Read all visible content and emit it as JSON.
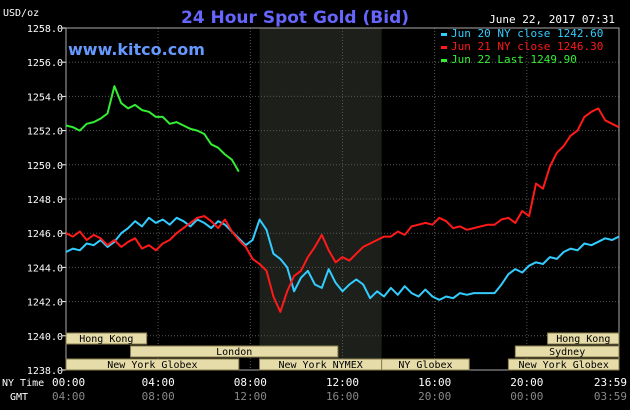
{
  "chart_data": {
    "type": "line",
    "title": "24 Hour Spot Gold (Bid)",
    "timestamp": "June 22, 2017 07:31",
    "watermark": "www.kitco.com",
    "y_unit_label": "USD/oz",
    "ylim": [
      1238.0,
      1258.0
    ],
    "y_ticks": [
      "1258.0",
      "1256.0",
      "1254.0",
      "1252.0",
      "1250.0",
      "1248.0",
      "1246.0",
      "1244.0",
      "1242.0",
      "1240.0",
      "1238.0"
    ],
    "x_row_label_ny": "NY Time",
    "x_row_label_gmt": "GMT",
    "x_ticks_ny": [
      "00:00",
      "04:00",
      "08:00",
      "12:00",
      "16:00",
      "20:00",
      "23:59"
    ],
    "x_ticks_gmt": [
      "04:00",
      "08:00",
      "12:00",
      "16:00",
      "20:00",
      "00:00",
      "03:59"
    ],
    "xlim_hours": [
      0,
      24
    ],
    "grid": true,
    "legend_position": "top-right",
    "colors": {
      "cyan": "#33ccff",
      "red": "#ff1a1a",
      "green": "#33ee33",
      "grid": "#555555",
      "title": "#6666ff",
      "text": "#ffffff",
      "tick_text": "#cccccc",
      "shade": "#1c1f1a",
      "session_bg": "#e6dcaa"
    },
    "shaded_region_hours": [
      8.4,
      13.7
    ],
    "series": [
      {
        "name": "Jun 20 NY close 1242.60",
        "color": "#33ccff",
        "x": [
          0,
          0.3,
          0.6,
          0.9,
          1.2,
          1.5,
          1.8,
          2.1,
          2.4,
          2.7,
          3.0,
          3.3,
          3.6,
          3.9,
          4.2,
          4.5,
          4.8,
          5.1,
          5.4,
          5.7,
          6.0,
          6.3,
          6.6,
          6.9,
          7.2,
          7.5,
          7.8,
          8.1,
          8.4,
          8.7,
          9.0,
          9.3,
          9.6,
          9.9,
          10.2,
          10.5,
          10.8,
          11.1,
          11.4,
          11.7,
          12.0,
          12.3,
          12.6,
          12.9,
          13.2,
          13.5,
          13.8,
          14.1,
          14.4,
          14.7,
          15.0,
          15.3,
          15.6,
          15.9,
          16.2,
          16.5,
          16.8,
          17.1,
          17.4,
          17.7,
          18.0,
          18.3,
          18.6,
          18.9,
          19.2,
          19.5,
          19.8,
          20.1,
          20.4,
          20.7,
          21.0,
          21.3,
          21.6,
          21.9,
          22.2,
          22.5,
          22.8,
          23.1,
          23.4,
          23.7,
          23.99
        ],
        "y": [
          1244.9,
          1245.1,
          1245.0,
          1245.4,
          1245.3,
          1245.6,
          1245.2,
          1245.5,
          1246.0,
          1246.3,
          1246.7,
          1246.4,
          1246.9,
          1246.6,
          1246.8,
          1246.5,
          1246.9,
          1246.7,
          1246.4,
          1246.8,
          1246.6,
          1246.3,
          1246.7,
          1246.5,
          1246.1,
          1245.7,
          1245.3,
          1245.6,
          1246.8,
          1246.2,
          1244.8,
          1244.5,
          1244.0,
          1242.6,
          1243.4,
          1243.8,
          1243.0,
          1242.8,
          1243.9,
          1243.1,
          1242.6,
          1243.0,
          1243.3,
          1243.0,
          1242.2,
          1242.6,
          1242.3,
          1242.8,
          1242.4,
          1242.9,
          1242.5,
          1242.3,
          1242.7,
          1242.3,
          1242.1,
          1242.3,
          1242.2,
          1242.5,
          1242.4,
          1242.5,
          1242.5,
          1242.5,
          1242.5,
          1243.0,
          1243.6,
          1243.9,
          1243.7,
          1244.1,
          1244.3,
          1244.2,
          1244.6,
          1244.5,
          1244.9,
          1245.1,
          1245.0,
          1245.4,
          1245.3,
          1245.5,
          1245.7,
          1245.6,
          1245.8
        ]
      },
      {
        "name": "Jun 21 NY close 1246.30",
        "color": "#ff1a1a",
        "x": [
          0,
          0.3,
          0.6,
          0.9,
          1.2,
          1.5,
          1.8,
          2.1,
          2.4,
          2.7,
          3.0,
          3.3,
          3.6,
          3.9,
          4.2,
          4.5,
          4.8,
          5.1,
          5.4,
          5.7,
          6.0,
          6.3,
          6.6,
          6.9,
          7.2,
          7.5,
          7.8,
          8.1,
          8.4,
          8.7,
          9.0,
          9.3,
          9.6,
          9.9,
          10.2,
          10.5,
          10.8,
          11.1,
          11.4,
          11.7,
          12.0,
          12.3,
          12.6,
          12.9,
          13.2,
          13.5,
          13.8,
          14.1,
          14.4,
          14.7,
          15.0,
          15.3,
          15.6,
          15.9,
          16.2,
          16.5,
          16.8,
          17.1,
          17.4,
          17.7,
          18.0,
          18.3,
          18.6,
          18.9,
          19.2,
          19.5,
          19.8,
          20.1,
          20.4,
          20.7,
          21.0,
          21.3,
          21.6,
          21.9,
          22.2,
          22.5,
          22.8,
          23.1,
          23.4,
          23.7,
          23.99
        ],
        "y": [
          1246.0,
          1245.8,
          1246.1,
          1245.6,
          1245.9,
          1245.7,
          1245.3,
          1245.6,
          1245.2,
          1245.5,
          1245.7,
          1245.1,
          1245.3,
          1245.0,
          1245.4,
          1245.6,
          1246.0,
          1246.3,
          1246.6,
          1246.9,
          1247.0,
          1246.7,
          1246.3,
          1246.8,
          1246.1,
          1245.6,
          1245.2,
          1244.5,
          1244.2,
          1243.8,
          1242.3,
          1241.4,
          1242.6,
          1243.5,
          1243.8,
          1244.6,
          1245.2,
          1245.9,
          1245.0,
          1244.3,
          1244.6,
          1244.4,
          1244.8,
          1245.2,
          1245.4,
          1245.6,
          1245.8,
          1245.8,
          1246.1,
          1245.9,
          1246.4,
          1246.5,
          1246.6,
          1246.5,
          1246.9,
          1246.7,
          1246.3,
          1246.4,
          1246.2,
          1246.3,
          1246.4,
          1246.5,
          1246.5,
          1246.8,
          1246.9,
          1246.6,
          1247.3,
          1247.0,
          1248.9,
          1248.6,
          1249.9,
          1250.7,
          1251.1,
          1251.7,
          1252.0,
          1252.8,
          1253.1,
          1253.3,
          1252.6,
          1252.4,
          1252.2
        ]
      },
      {
        "name": "Jun 22 Last 1249.90",
        "color": "#33ee33",
        "x": [
          0,
          0.3,
          0.6,
          0.9,
          1.2,
          1.5,
          1.8,
          2.1,
          2.4,
          2.7,
          3.0,
          3.3,
          3.6,
          3.9,
          4.2,
          4.5,
          4.8,
          5.1,
          5.4,
          5.7,
          6.0,
          6.3,
          6.6,
          6.9,
          7.2,
          7.5
        ],
        "y": [
          1252.3,
          1252.2,
          1252.0,
          1252.4,
          1252.5,
          1252.7,
          1253.0,
          1254.6,
          1253.6,
          1253.3,
          1253.5,
          1253.2,
          1253.1,
          1252.8,
          1252.8,
          1252.4,
          1252.5,
          1252.3,
          1252.1,
          1252.0,
          1251.8,
          1251.2,
          1251.0,
          1250.6,
          1250.3,
          1249.6
        ]
      }
    ]
  },
  "sessions": [
    {
      "label": "Hong Kong",
      "row": 0,
      "start_h": 0.0,
      "end_h": 3.5
    },
    {
      "label": "London",
      "row": 1,
      "start_h": 2.8,
      "end_h": 11.8
    },
    {
      "label": "New York Globex",
      "row": 2,
      "start_h": 0.0,
      "end_h": 7.5
    },
    {
      "label": "New York NYMEX",
      "row": 2,
      "start_h": 8.4,
      "end_h": 13.7
    },
    {
      "label": "NY Globex",
      "row": 2,
      "start_h": 13.7,
      "end_h": 17.5
    },
    {
      "label": "Hong Kong",
      "row": 0,
      "start_h": 20.9,
      "end_h": 24.0
    },
    {
      "label": "Sydney",
      "row": 1,
      "start_h": 19.5,
      "end_h": 24.0
    },
    {
      "label": "New York Globex",
      "row": 2,
      "start_h": 19.2,
      "end_h": 24.0
    }
  ]
}
